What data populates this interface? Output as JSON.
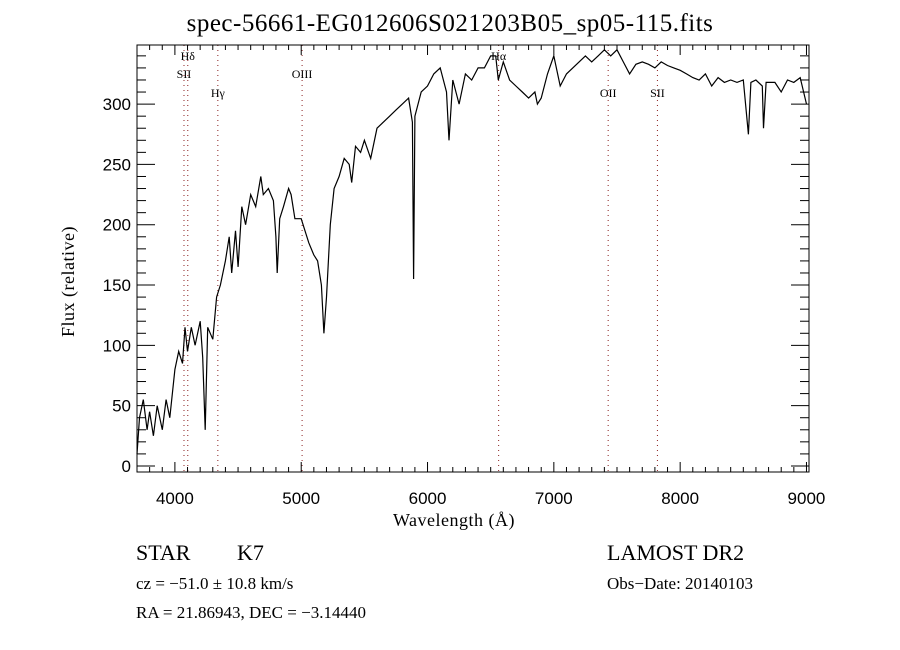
{
  "chart_data": {
    "type": "line",
    "title": "spec-56661-EG012606S021203B05_sp05-115.fits",
    "xlabel": "Wavelength (Å)",
    "ylabel": "Flux (relative)",
    "xlim": [
      3700,
      9020
    ],
    "ylim": [
      -5,
      349
    ],
    "xticks": [
      4000,
      5000,
      6000,
      7000,
      8000,
      9000
    ],
    "xtick_labels": [
      "4000",
      "5000",
      "6000",
      "7000",
      "8000",
      "9000"
    ],
    "yticks": [
      0,
      50,
      100,
      150,
      200,
      250,
      300
    ],
    "ytick_labels": [
      "0",
      "50",
      "100",
      "150",
      "200",
      "250",
      "300"
    ],
    "grid": false,
    "lines": [
      {
        "label": "Hδ",
        "x": 4102,
        "row": 0
      },
      {
        "label": "SII",
        "x": 4072,
        "row": 1
      },
      {
        "label": "Hγ",
        "x": 4340,
        "row": 2
      },
      {
        "label": "OIII",
        "x": 5007,
        "row": 1
      },
      {
        "label": "Hα",
        "x": 6563,
        "row": 0
      },
      {
        "label": "OII",
        "x": 7430,
        "row": 2
      },
      {
        "label": "SII",
        "x": 7820,
        "row": 2
      }
    ],
    "series": [
      {
        "name": "flux",
        "x": [
          3700,
          3720,
          3750,
          3780,
          3800,
          3830,
          3860,
          3900,
          3930,
          3960,
          4000,
          4030,
          4060,
          4080,
          4100,
          4130,
          4160,
          4200,
          4220,
          4240,
          4260,
          4300,
          4330,
          4360,
          4400,
          4430,
          4450,
          4480,
          4500,
          4530,
          4560,
          4600,
          4640,
          4680,
          4700,
          4740,
          4780,
          4800,
          4810,
          4830,
          4860,
          4900,
          4920,
          4950,
          5000,
          5030,
          5060,
          5100,
          5130,
          5160,
          5180,
          5200,
          5230,
          5260,
          5300,
          5340,
          5380,
          5400,
          5430,
          5470,
          5500,
          5550,
          5600,
          5650,
          5700,
          5750,
          5800,
          5850,
          5880,
          5890,
          5900,
          5950,
          6000,
          6050,
          6100,
          6150,
          6170,
          6200,
          6250,
          6300,
          6350,
          6400,
          6450,
          6500,
          6540,
          6560,
          6600,
          6650,
          6700,
          6750,
          6800,
          6850,
          6870,
          6900,
          6950,
          7000,
          7050,
          7100,
          7150,
          7200,
          7250,
          7300,
          7350,
          7400,
          7450,
          7500,
          7550,
          7600,
          7650,
          7700,
          7750,
          7800,
          7850,
          7900,
          7950,
          8000,
          8050,
          8100,
          8150,
          8200,
          8250,
          8300,
          8350,
          8400,
          8450,
          8500,
          8540,
          8560,
          8600,
          8650,
          8660,
          8680,
          8750,
          8800,
          8850,
          8900,
          8950,
          9000
        ],
        "y": [
          10,
          40,
          55,
          30,
          45,
          25,
          50,
          30,
          55,
          40,
          80,
          95,
          85,
          115,
          95,
          115,
          100,
          120,
          90,
          30,
          115,
          105,
          140,
          150,
          170,
          190,
          160,
          195,
          165,
          215,
          200,
          225,
          215,
          240,
          225,
          230,
          220,
          190,
          160,
          205,
          215,
          230,
          225,
          205,
          205,
          195,
          185,
          175,
          170,
          150,
          110,
          140,
          200,
          230,
          240,
          255,
          250,
          235,
          265,
          260,
          270,
          255,
          280,
          285,
          290,
          295,
          300,
          305,
          285,
          155,
          290,
          310,
          315,
          325,
          330,
          310,
          270,
          320,
          300,
          325,
          320,
          330,
          330,
          340,
          340,
          320,
          335,
          320,
          315,
          310,
          305,
          310,
          300,
          305,
          325,
          340,
          315,
          325,
          330,
          335,
          340,
          335,
          340,
          345,
          340,
          345,
          335,
          325,
          333,
          335,
          333,
          330,
          335,
          332,
          330,
          328,
          325,
          322,
          320,
          325,
          315,
          322,
          318,
          320,
          318,
          320,
          275,
          318,
          320,
          315,
          280,
          318,
          318,
          310,
          320,
          318,
          322,
          300
        ]
      }
    ]
  },
  "footer": {
    "object_class": "STAR",
    "subclass": "K7",
    "survey": "LAMOST DR2",
    "cz": "cz = −51.0 ± 10.8 km/s",
    "obs_date": "Obs−Date: 20140103",
    "coords": "RA =  21.86943, DEC =  −3.14440"
  }
}
